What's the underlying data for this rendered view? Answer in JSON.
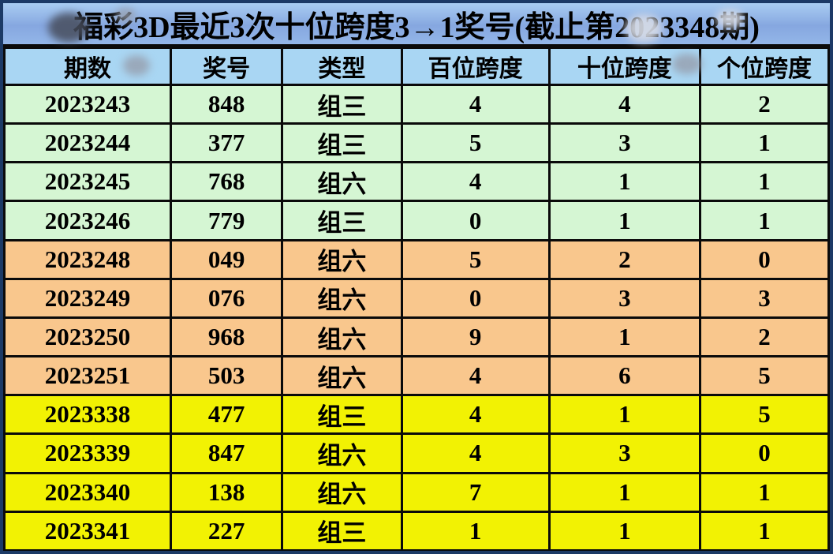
{
  "chart_data": {
    "type": "table",
    "title": "福彩3D最近3次十位跨度3→1奖号(截止第2023348期)",
    "columns": [
      "期数",
      "奖号",
      "类型",
      "百位跨度",
      "十位跨度",
      "个位跨度"
    ],
    "rows": [
      [
        "2023243",
        "848",
        "组三",
        "4",
        "4",
        "2"
      ],
      [
        "2023244",
        "377",
        "组三",
        "5",
        "3",
        "1"
      ],
      [
        "2023245",
        "768",
        "组六",
        "4",
        "1",
        "1"
      ],
      [
        "2023246",
        "779",
        "组三",
        "0",
        "1",
        "1"
      ],
      [
        "2023248",
        "049",
        "组六",
        "5",
        "2",
        "0"
      ],
      [
        "2023249",
        "076",
        "组六",
        "0",
        "3",
        "3"
      ],
      [
        "2023250",
        "968",
        "组六",
        "9",
        "1",
        "2"
      ],
      [
        "2023251",
        "503",
        "组六",
        "4",
        "6",
        "5"
      ],
      [
        "2023338",
        "477",
        "组三",
        "4",
        "1",
        "5"
      ],
      [
        "2023339",
        "847",
        "组六",
        "4",
        "3",
        "0"
      ],
      [
        "2023340",
        "138",
        "组六",
        "7",
        "1",
        "1"
      ],
      [
        "2023341",
        "227",
        "组三",
        "1",
        "1",
        "1"
      ]
    ],
    "row_groups": [
      "green",
      "green",
      "green",
      "green",
      "orange",
      "orange",
      "orange",
      "orange",
      "yellow",
      "yellow",
      "yellow",
      "yellow"
    ],
    "legend_position": "none",
    "grid": true
  },
  "colors": {
    "group_green": "#d5f6d3",
    "group_orange": "#f9c78d",
    "group_yellow": "#f2f203",
    "header_blue": "#a9d6f3",
    "title_blue": "#8cabe2",
    "frame_navy": "#1c3a66",
    "grid_line": "#0a0a0a",
    "text": "#000000"
  }
}
